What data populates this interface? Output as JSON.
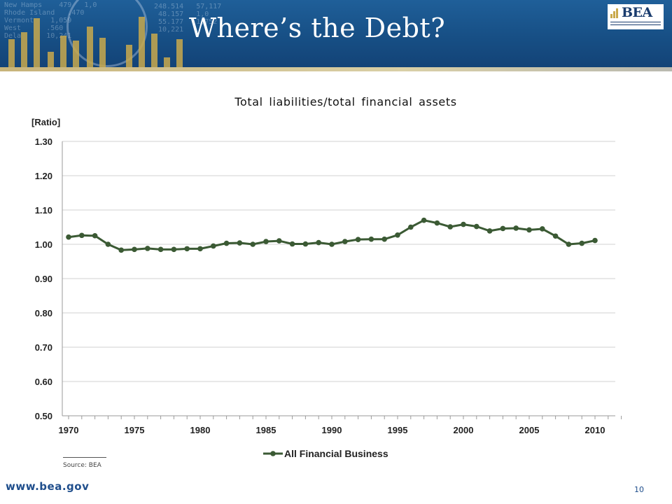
{
  "slide": {
    "title": "Where’s the Debt?",
    "logo_text": "BEA",
    "source": "Source: BEA",
    "footer_url": "www.bea.gov",
    "page_number": "10"
  },
  "colors": {
    "banner": "#1a5590",
    "series_line": "#3b5a34",
    "gridline": "#d0d0d0",
    "footer_text": "#1f4e8c"
  },
  "chart_data": {
    "type": "line",
    "title": "Total liabilities/total financial assets",
    "ylabel": "[Ratio]",
    "xlabel": "",
    "ylim": [
      0.5,
      1.3
    ],
    "xlim": [
      1970,
      2012
    ],
    "y_ticks": [
      "0.50",
      "0.60",
      "0.70",
      "0.80",
      "0.90",
      "1.00",
      "1.10",
      "1.20",
      "1.30"
    ],
    "x_ticks": [
      "1970",
      "1975",
      "1980",
      "1985",
      "1990",
      "1995",
      "2000",
      "2005",
      "2010"
    ],
    "grid": true,
    "legend": "bottom",
    "series": [
      {
        "name": "All Financial Business",
        "x": [
          1970,
          1971,
          1972,
          1973,
          1974,
          1975,
          1976,
          1977,
          1978,
          1979,
          1980,
          1981,
          1982,
          1983,
          1984,
          1985,
          1986,
          1987,
          1988,
          1989,
          1990,
          1991,
          1992,
          1993,
          1994,
          1995,
          1996,
          1997,
          1998,
          1999,
          2000,
          2001,
          2002,
          2003,
          2004,
          2005,
          2006,
          2007,
          2008,
          2009,
          2010
        ],
        "values": [
          1.021,
          1.026,
          1.025,
          1.0,
          0.983,
          0.985,
          0.988,
          0.985,
          0.985,
          0.987,
          0.987,
          0.995,
          1.003,
          1.004,
          1.0,
          1.008,
          1.01,
          1.001,
          1.001,
          1.005,
          1.0,
          1.008,
          1.014,
          1.015,
          1.015,
          1.027,
          1.05,
          1.07,
          1.062,
          1.051,
          1.058,
          1.052,
          1.039,
          1.046,
          1.047,
          1.042,
          1.045,
          1.024,
          1.0,
          1.003,
          1.011
        ]
      }
    ]
  }
}
